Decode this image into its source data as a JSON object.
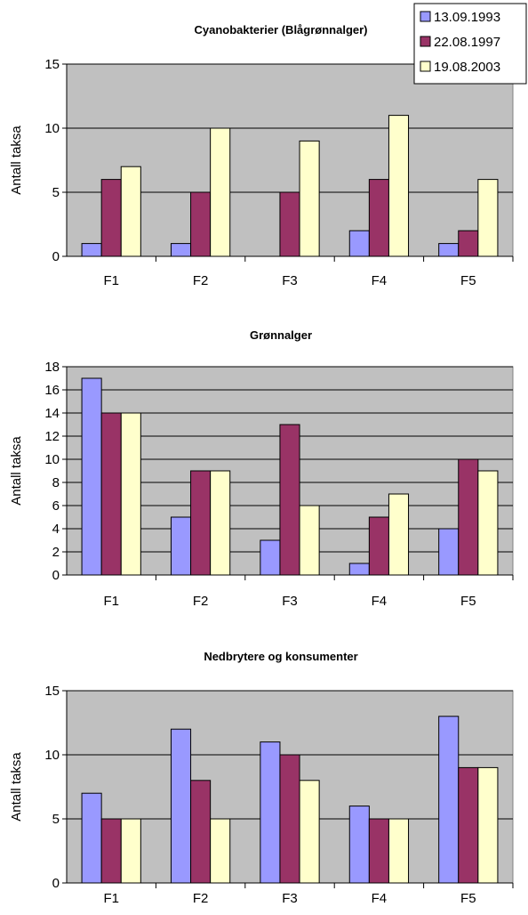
{
  "colors": {
    "series": [
      "#9999ff",
      "#993366",
      "#ffffcc"
    ],
    "plot_bg": "#c0c0c0",
    "gridline": "#000000",
    "bar_stroke": "#000000"
  },
  "legend": {
    "placement": "top-right",
    "entries": [
      "13.09.1993",
      "22.08.1997",
      "19.08.2003"
    ]
  },
  "chart_data": [
    {
      "type": "bar",
      "title": "Cyanobakterier (Blågrønnalger)",
      "xlabel": "",
      "ylabel": "Antall taksa",
      "categories": [
        "F1",
        "F2",
        "F3",
        "F4",
        "F5"
      ],
      "ylim": [
        0,
        15
      ],
      "yticks": [
        0,
        5,
        10,
        15
      ],
      "grid": true,
      "series": [
        {
          "name": "13.09.1993",
          "values": [
            1,
            1,
            0,
            2,
            1
          ]
        },
        {
          "name": "22.08.1997",
          "values": [
            6,
            5,
            5,
            6,
            2
          ]
        },
        {
          "name": "19.08.2003",
          "values": [
            7,
            10,
            9,
            11,
            6
          ]
        }
      ]
    },
    {
      "type": "bar",
      "title": "Grønnalger",
      "xlabel": "",
      "ylabel": "Antall taksa",
      "categories": [
        "F1",
        "F2",
        "F3",
        "F4",
        "F5"
      ],
      "ylim": [
        0,
        18
      ],
      "yticks": [
        0,
        2,
        4,
        6,
        8,
        10,
        12,
        14,
        16,
        18
      ],
      "grid": true,
      "series": [
        {
          "name": "13.09.1993",
          "values": [
            17,
            5,
            3,
            1,
            4
          ]
        },
        {
          "name": "22.08.1997",
          "values": [
            14,
            9,
            13,
            5,
            10
          ]
        },
        {
          "name": "19.08.2003",
          "values": [
            14,
            9,
            6,
            7,
            9
          ]
        }
      ]
    },
    {
      "type": "bar",
      "title": "Nedbrytere og konsumenter",
      "xlabel": "",
      "ylabel": "Antall taksa",
      "categories": [
        "F1",
        "F2",
        "F3",
        "F4",
        "F5"
      ],
      "ylim": [
        0,
        15
      ],
      "yticks": [
        0,
        5,
        10,
        15
      ],
      "grid": true,
      "series": [
        {
          "name": "13.09.1993",
          "values": [
            7,
            12,
            11,
            6,
            13
          ]
        },
        {
          "name": "22.08.1997",
          "values": [
            5,
            8,
            10,
            5,
            9
          ]
        },
        {
          "name": "19.08.2003",
          "values": [
            5,
            5,
            8,
            5,
            9
          ]
        }
      ]
    }
  ]
}
